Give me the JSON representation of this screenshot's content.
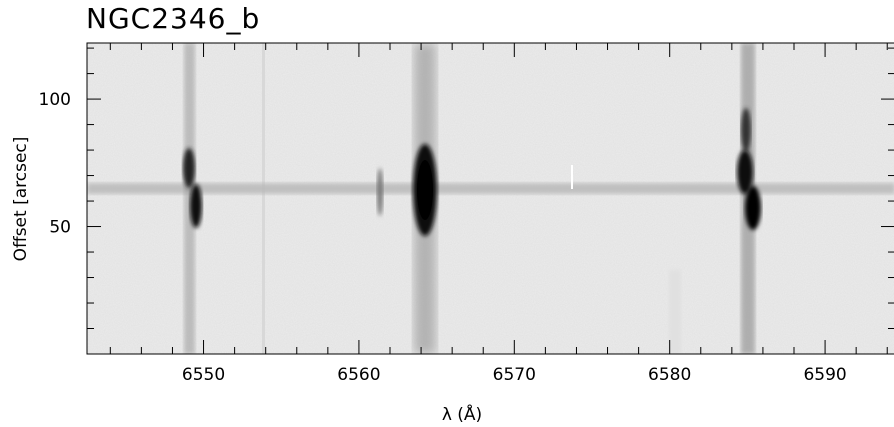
{
  "title": "NGC2346_b",
  "xlabel": "λ (Å)",
  "ylabel": "Offset [arcsec]",
  "x_ticks": [
    "6550",
    "6560",
    "6570",
    "6580",
    "6590"
  ],
  "y_ticks": [
    "100",
    "50"
  ],
  "colors": {
    "background": "#ffffff",
    "spectrum_bg": "#ececec",
    "ink": "#000000"
  },
  "chart_data": {
    "type": "heatmap",
    "xlim": [
      6542.5,
      6594.5
    ],
    "ylim": [
      0,
      122
    ],
    "x_tick_values": [
      6550,
      6560,
      6570,
      6580,
      6590
    ],
    "y_tick_values": [
      100,
      50
    ],
    "continuum_offset": 65,
    "emission_lines": [
      {
        "lambda": 6548.9,
        "strength": "medium"
      },
      {
        "lambda": 6561.3,
        "strength": "faint"
      },
      {
        "lambda": 6563.8,
        "strength": "strong"
      },
      {
        "lambda": 6584.6,
        "strength": "strong"
      }
    ],
    "grid": false
  }
}
